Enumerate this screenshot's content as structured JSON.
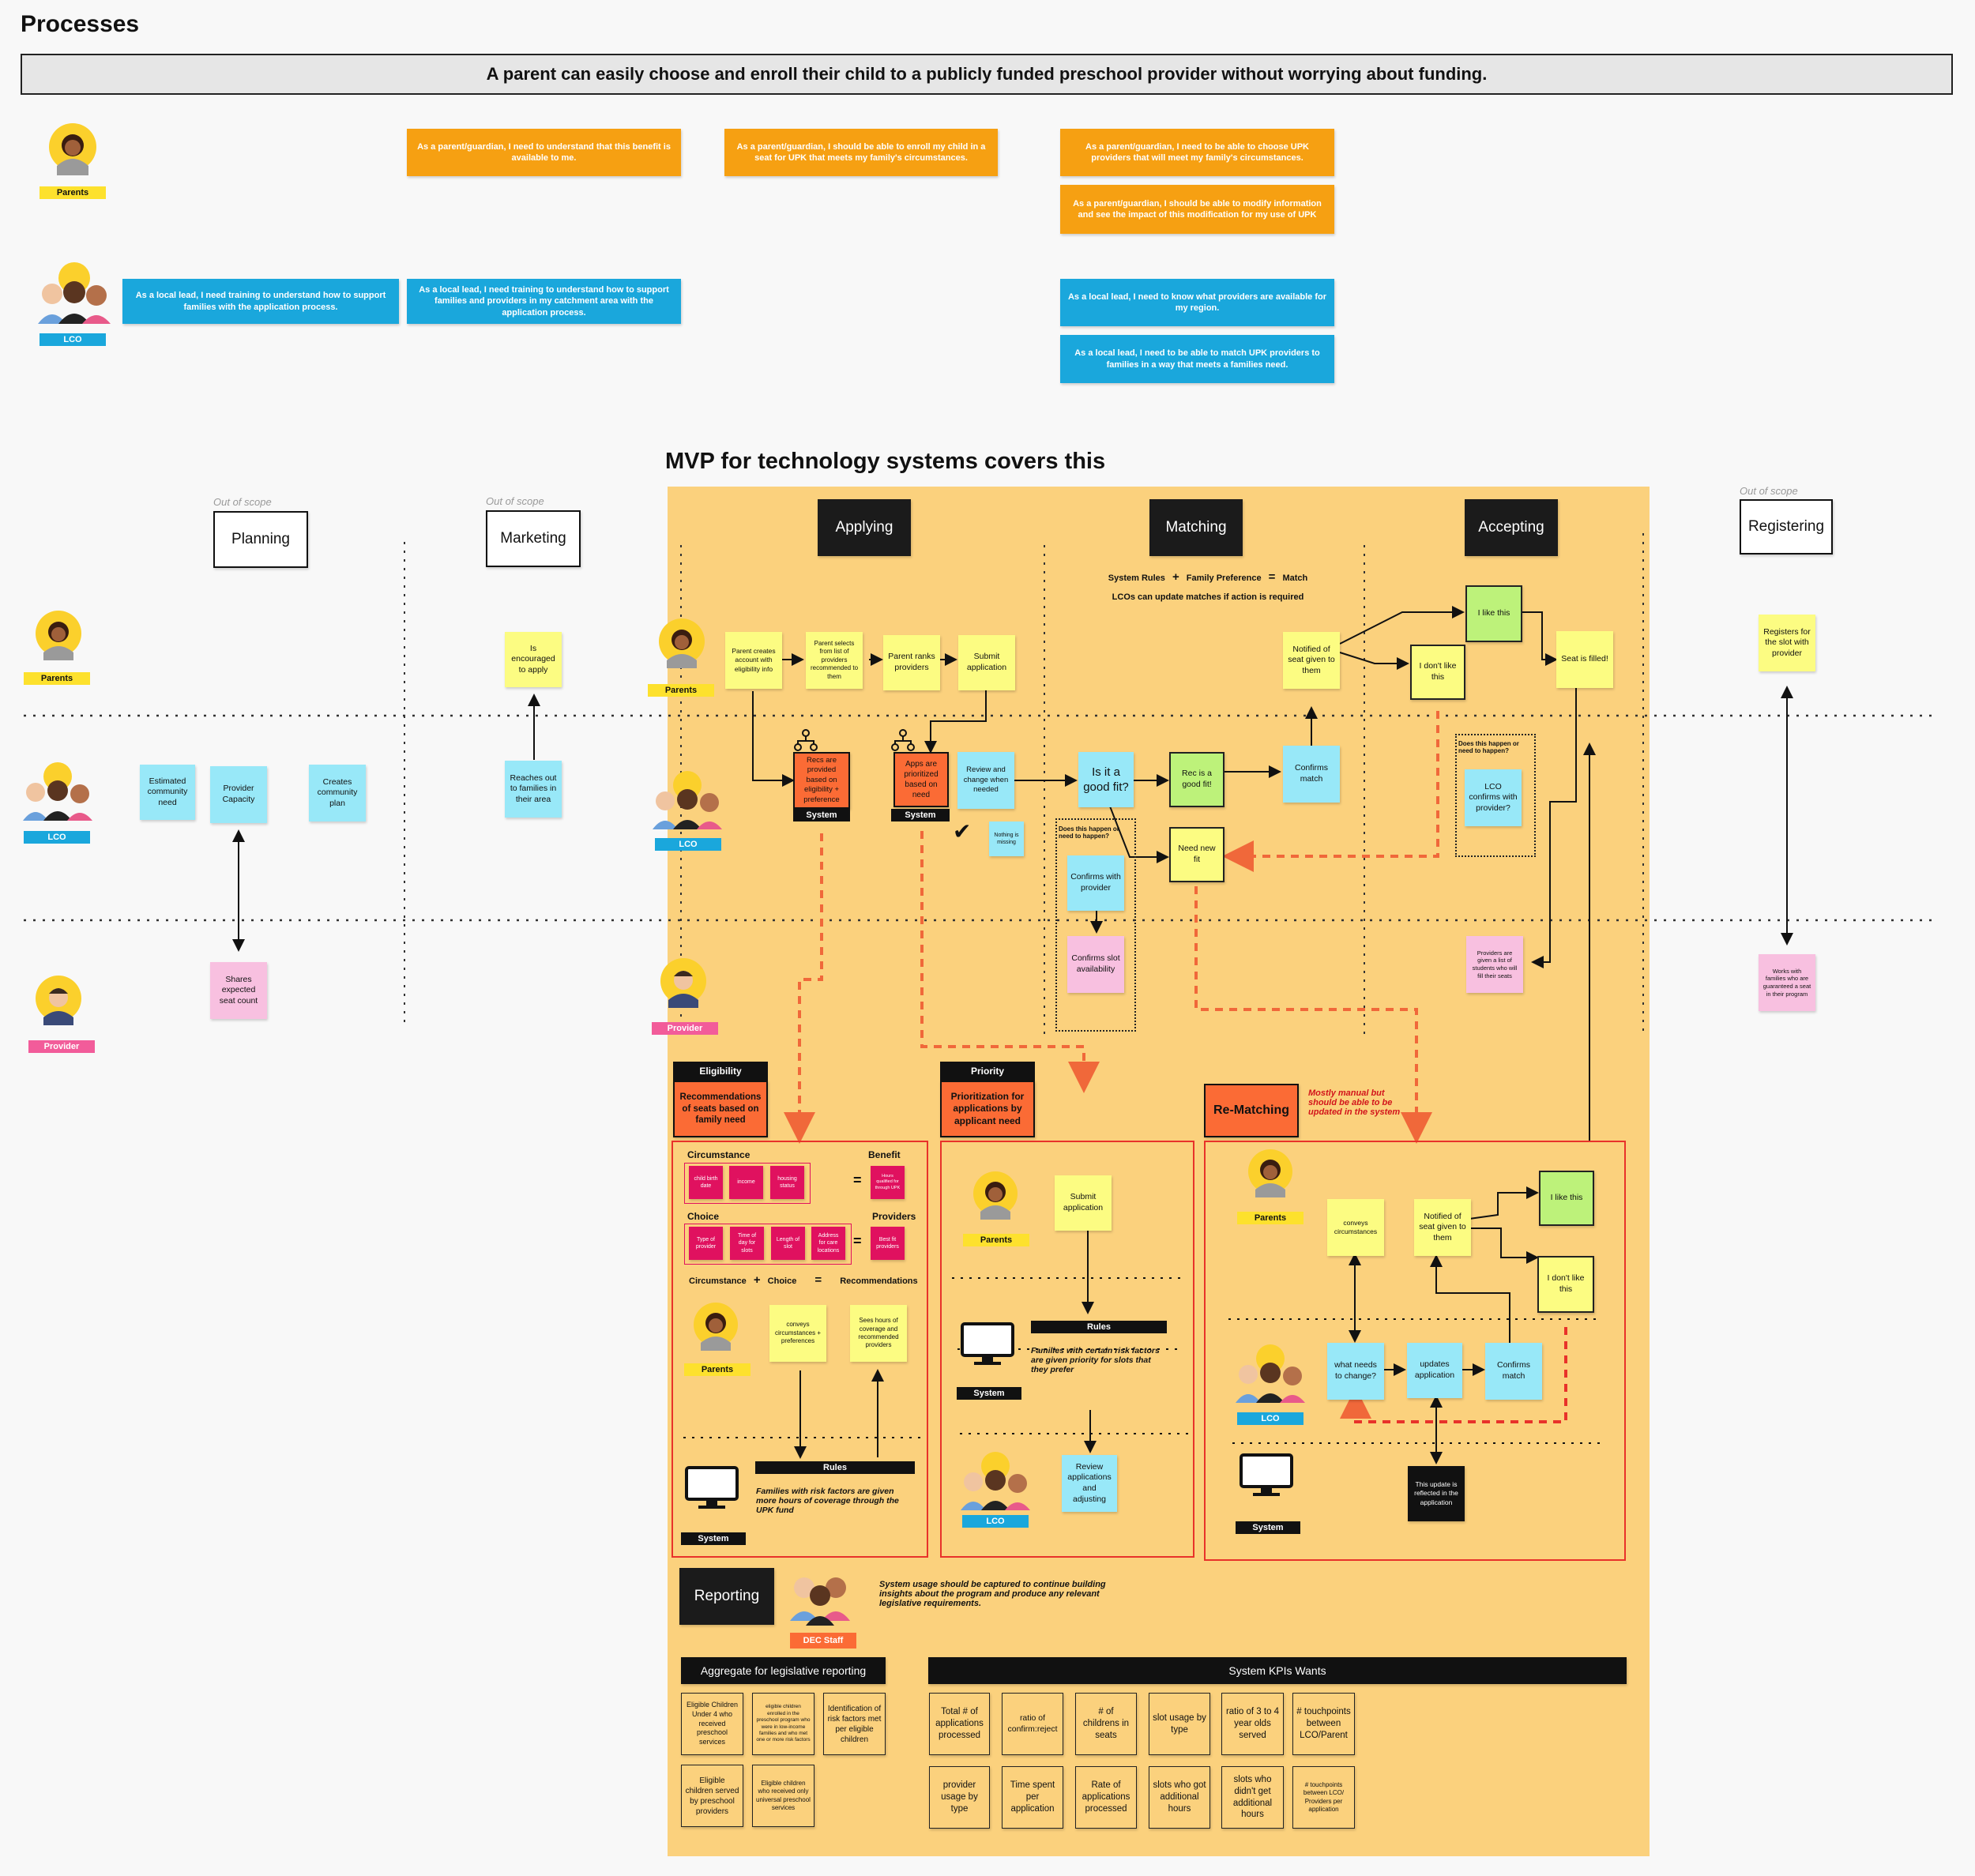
{
  "page_title": "Processes",
  "banner": "A parent can easily choose and enroll their child to a publicly funded preschool provider without worrying about funding.",
  "roles": {
    "parents": "Parents",
    "lco": "LCO",
    "provider": "Provider",
    "system": "System",
    "dec_staff": "DEC Staff"
  },
  "stories": {
    "parent_1": "As a parent/guardian, I need to understand that this benefit is available to me.",
    "parent_2": "As a parent/guardian, I should be able to enroll my child in a seat for UPK that meets my family's circumstances.",
    "parent_3": "As a parent/guardian, I need to be able to choose UPK providers that will meet my family's circumstances.",
    "parent_4": "As a parent/guardian, I should be able to modify information and see the impact of this modification for my use of UPK",
    "lco_1": "As a local lead, I need training to understand how to support families with the application process.",
    "lco_2": "As a local lead, I need training to understand how to support families and providers in my catchment area with the application process.",
    "lco_3": "As a local lead, I need to know what providers are available for my region.",
    "lco_4": "As a local lead, I need to be able to match UPK providers to families in a way that meets a families need."
  },
  "mvp_heading": "MVP for technology systems covers this",
  "out_of_scope": "Out of scope",
  "phases": {
    "planning": "Planning",
    "marketing": "Marketing",
    "applying": "Applying",
    "matching": "Matching",
    "accepting": "Accepting",
    "registering": "Registering"
  },
  "planning": {
    "need": "Estimated community need",
    "capacity": "Provider Capacity",
    "plan": "Creates community plan",
    "seats": "Shares expected seat count"
  },
  "marketing": {
    "encouraged": "Is encouraged to apply",
    "reaches": "Reaches out to families in their area"
  },
  "applying": {
    "create": "Parent creates account with eligibility info",
    "selects": "Parent selects from list of providers recommended to them",
    "ranks": "Parent ranks providers",
    "submit": "Submit application",
    "recs": "Recs are provided based on eligibility + preference",
    "prioritized": "Apps are prioritized based on need",
    "review": "Review and change when needed",
    "nothing": "Nothing is missing",
    "check": "✔"
  },
  "matching": {
    "rule_line1_a": "System Rules",
    "rule_plus": "+",
    "rule_line1_b": "Family Preference",
    "rule_eq": "=",
    "rule_line1_c": "Match",
    "rule_line2": "LCOs can update matches if action is required",
    "good_fit": "Is it a good fit?",
    "rec_good": "Rec is a good fit!",
    "confirms_match": "Confirms match",
    "notified": "Notified of seat given to them",
    "need_new": "Need new fit",
    "question": "Does this happen or need to happen?",
    "confirm_provider": "Confirms with provider",
    "confirm_slot": "Confirms slot availability"
  },
  "accepting": {
    "like": "I like this",
    "dislike": "I don't like this",
    "filled": "Seat is filled!",
    "question": "Does this happen or need to happen?",
    "lco_confirm": "LCO confirms with provider?",
    "providers_given": "Providers are given a list of students who will fill their seats"
  },
  "registering": {
    "registers": "Registers for the slot with provider",
    "works": "Works with families who are guaranteed a seat in their program"
  },
  "eligibility": {
    "tag": "Eligibility",
    "title": "Recommendations of seats based on family need",
    "circumstance": "Circumstance",
    "benefit": "Benefit",
    "choice": "Choice",
    "providers": "Providers",
    "circ_items": [
      "child birth date",
      "income",
      "housing status"
    ],
    "benefit_item": "Hours qualified for through UPK",
    "choice_items": [
      "Type of provider",
      "Time of day for slots",
      "Length of slot",
      "Address for care locations"
    ],
    "providers_item": "Best fit providers",
    "formula_a": "Circumstance",
    "formula_plus": "+",
    "formula_b": "Choice",
    "formula_eq": "=",
    "formula_c": "Recommendations",
    "conveys": "conveys circumstances + preferences",
    "sees": "Sees hours of coverage and recommended providers",
    "rules": "Rules",
    "rules_note": "Families with risk factors are given more hours of coverage through the UPK fund"
  },
  "priority": {
    "tag": "Priority",
    "title": "Prioritization for applications by applicant need",
    "submit": "Submit application",
    "rules": "Rules",
    "rules_note": "Families with certain risk factors are given priority for slots that they prefer",
    "review": "Review applications and adjusting"
  },
  "rematching": {
    "title": "Re-Matching",
    "note": "Mostly manual but should be able to be updated in the system",
    "conveys": "conveys circumstances",
    "notified": "Notified of seat given to them",
    "like": "I like this",
    "dislike": "I don't like this",
    "what": "what needs to change?",
    "updates": "updates application",
    "confirms": "Confirms match",
    "reflected": "This update is reflected in the application"
  },
  "reporting": {
    "title": "Reporting",
    "note": "System usage should be captured to continue building insights about the program and produce any relevant legislative requirements.",
    "aggregate": "Aggregate for legislative reporting",
    "kpis_title": "System KPIs Wants",
    "agg_items": [
      "Eligible Children Under 4 who received preschool services",
      "eligible children enrolled in the preschool program who were in low-income families and who met one or more risk factors",
      "Identification of risk factors met per eligible children",
      "Eligible children served by preschool providers",
      "Eligible children who received only universal preschool services"
    ],
    "kpi_items": [
      "Total # of applications processed",
      "ratio of confirm:reject",
      "# of childrens in seats",
      "slot usage by type",
      "ratio of 3 to 4 year olds served",
      "# touchpoints between LCO/Parent",
      "provider usage by type",
      "Time spent per application",
      "Rate of applications processed",
      "slots who got additional hours",
      "slots who didn't get additional hours",
      "# touchpoints between LCO/ Providers per application"
    ]
  },
  "colors": {
    "orange_story": "#f6a012",
    "blue_story": "#1aa7dc",
    "mvp_bg": "#fbd17d",
    "red_region": "#e8322a"
  }
}
